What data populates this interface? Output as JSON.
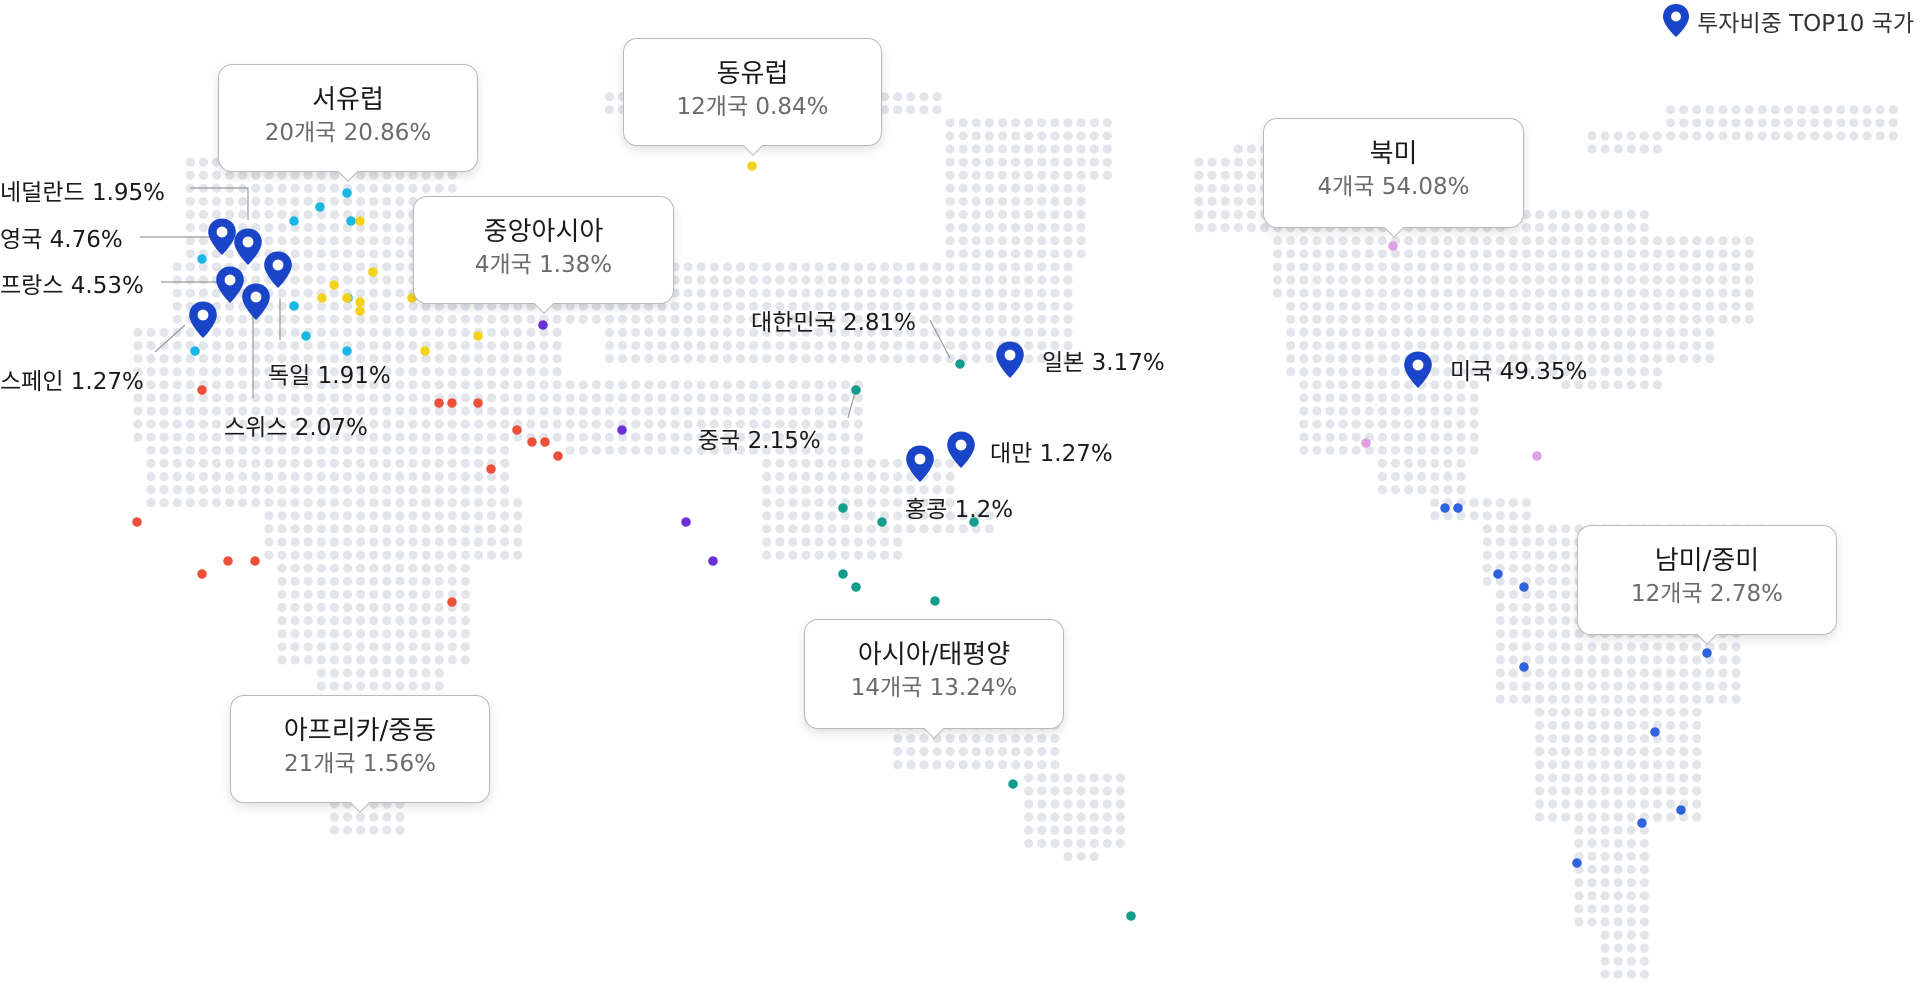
{
  "legend": {
    "label": "투자비중 TOP10 국가"
  },
  "colors": {
    "map_dot": "#e2e5ea",
    "pin": "#1a45c8",
    "western_europe": "#19b7e6",
    "eastern_europe": "#f5d21a",
    "central_asia": "#6b2fd6",
    "africa_middle_east": "#ec5038",
    "asia_pacific": "#149c8c",
    "north_america": "#dda0e0",
    "latin_america": "#2f63dd"
  },
  "regions": [
    {
      "name": "서유럽",
      "stat": "20개국 20.86%"
    },
    {
      "name": "동유럽",
      "stat": "12개국 0.84%"
    },
    {
      "name": "중앙아시아",
      "stat": "4개국 1.38%"
    },
    {
      "name": "아프리카/중동",
      "stat": "21개국 1.56%"
    },
    {
      "name": "아시아/태평양",
      "stat": "14개국 13.24%"
    },
    {
      "name": "북미",
      "stat": "4개국 54.08%"
    },
    {
      "name": "남미/중미",
      "stat": "12개국 2.78%"
    }
  ],
  "countries": [
    {
      "label": "네덜란드 1.95%"
    },
    {
      "label": "영국 4.76%"
    },
    {
      "label": "프랑스 4.53%"
    },
    {
      "label": "스페인 1.27%"
    },
    {
      "label": "독일 1.91%"
    },
    {
      "label": "스위스 2.07%"
    },
    {
      "label": "대한민국 2.81%"
    },
    {
      "label": "일본 3.17%"
    },
    {
      "label": "중국 2.15%"
    },
    {
      "label": "대만 1.27%"
    },
    {
      "label": "홍콩 1.2%"
    },
    {
      "label": "미국 49.35%"
    }
  ]
}
